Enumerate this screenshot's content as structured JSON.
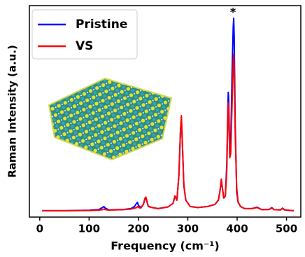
{
  "chart_data": {
    "type": "line",
    "xlabel": "Frequency (cm⁻¹)",
    "ylabel": "Raman Intensity (a.u.)",
    "annotation": "*",
    "legend": "upper left",
    "xlim": [
      -21,
      529
    ],
    "xticks": [
      0,
      100,
      200,
      300,
      400,
      500
    ],
    "ylim": [
      0,
      1
    ],
    "x": [
      5,
      50,
      100,
      120,
      127,
      130,
      133,
      140,
      170,
      185,
      192,
      196,
      198,
      200,
      205,
      210,
      213,
      215,
      217,
      220,
      228,
      240,
      260,
      270,
      274,
      276,
      278,
      282,
      285,
      287,
      289,
      292,
      296,
      305,
      320,
      340,
      355,
      362,
      365,
      368,
      370,
      373,
      376,
      379,
      381,
      382,
      383,
      385,
      387,
      390,
      392,
      393,
      394,
      396,
      399,
      402,
      407,
      415,
      430,
      440,
      450,
      465,
      470,
      475,
      488,
      492,
      496,
      510,
      515
    ],
    "series": [
      {
        "name": "Pristine",
        "color": "#0000ff",
        "values": [
          0.03,
          0.03,
          0.032,
          0.036,
          0.045,
          0.05,
          0.042,
          0.034,
          0.036,
          0.04,
          0.05,
          0.065,
          0.07,
          0.055,
          0.045,
          0.06,
          0.085,
          0.09,
          0.075,
          0.05,
          0.045,
          0.04,
          0.048,
          0.065,
          0.1,
          0.09,
          0.08,
          0.2,
          0.4,
          0.47,
          0.35,
          0.15,
          0.08,
          0.05,
          0.045,
          0.05,
          0.06,
          0.08,
          0.12,
          0.17,
          0.14,
          0.09,
          0.1,
          0.25,
          0.5,
          0.59,
          0.55,
          0.3,
          0.35,
          0.7,
          0.9,
          0.94,
          0.85,
          0.45,
          0.12,
          0.07,
          0.05,
          0.04,
          0.04,
          0.047,
          0.035,
          0.036,
          0.045,
          0.035,
          0.034,
          0.042,
          0.034,
          0.031,
          0.03
        ]
      },
      {
        "name": "VS",
        "color": "#ff0000",
        "values": [
          0.03,
          0.03,
          0.031,
          0.033,
          0.035,
          0.038,
          0.035,
          0.033,
          0.035,
          0.038,
          0.042,
          0.045,
          0.05,
          0.045,
          0.043,
          0.06,
          0.088,
          0.095,
          0.078,
          0.05,
          0.045,
          0.04,
          0.048,
          0.065,
          0.1,
          0.09,
          0.08,
          0.2,
          0.4,
          0.48,
          0.35,
          0.15,
          0.08,
          0.05,
          0.045,
          0.05,
          0.06,
          0.08,
          0.12,
          0.18,
          0.14,
          0.09,
          0.1,
          0.22,
          0.45,
          0.54,
          0.5,
          0.28,
          0.3,
          0.55,
          0.72,
          0.77,
          0.7,
          0.4,
          0.14,
          0.07,
          0.05,
          0.04,
          0.04,
          0.045,
          0.035,
          0.036,
          0.043,
          0.035,
          0.034,
          0.04,
          0.034,
          0.031,
          0.03
        ]
      }
    ]
  }
}
